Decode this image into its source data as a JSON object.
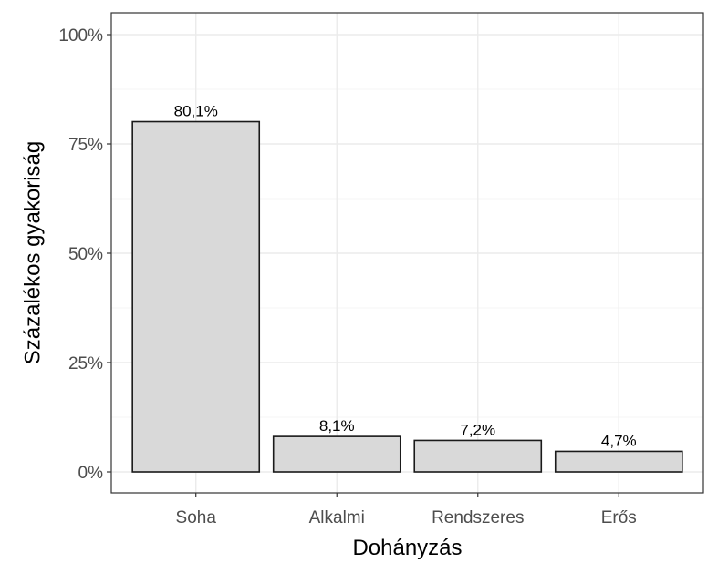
{
  "chart_data": {
    "type": "bar",
    "categories": [
      "Soha",
      "Alkalmi",
      "Rendszeres",
      "Erős"
    ],
    "values": [
      80.1,
      8.1,
      7.2,
      4.7
    ],
    "value_labels": [
      "80,1%",
      "8,1%",
      "7,2%",
      "4,7%"
    ],
    "title": "",
    "xlabel": "Dohányzás",
    "ylabel": "Százalékos gyakoriság",
    "ylim": [
      0,
      100
    ],
    "y_ticks": [
      0,
      25,
      50,
      75,
      100
    ],
    "y_tick_labels": [
      "0%",
      "25%",
      "50%",
      "75%",
      "100%"
    ],
    "grid": true,
    "legend": "none",
    "colors": {
      "bar_fill": "#d9d9d9",
      "bar_stroke": "#1a1a1a",
      "grid_major": "#ebebeb",
      "grid_minor": "#f2f2f2",
      "panel_border": "#333333",
      "tick_text": "#4d4d4d"
    }
  }
}
